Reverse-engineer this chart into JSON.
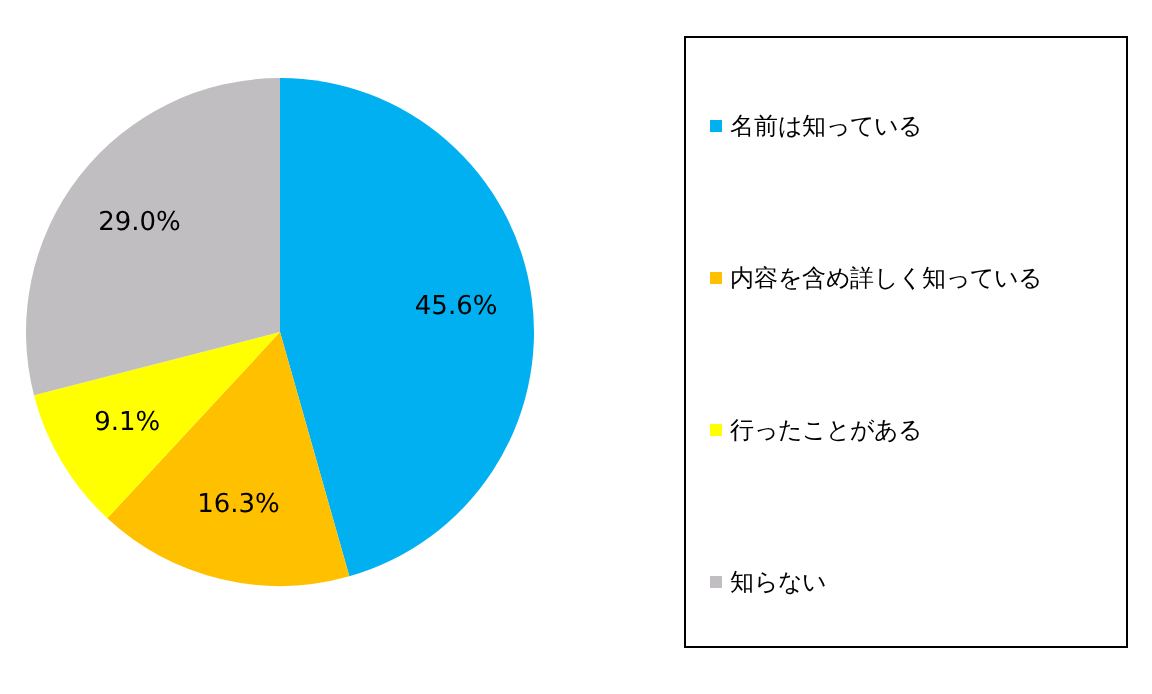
{
  "chart_data": {
    "type": "pie",
    "categories": [
      "名前は知っている",
      "内容を含め詳しく知っている",
      "行ったことがある",
      "知らない"
    ],
    "values": [
      45.6,
      16.3,
      9.1,
      29.0
    ],
    "colors": [
      "#00b0f0",
      "#ffc000",
      "#ffff00",
      "#c0bec0"
    ],
    "value_labels": [
      "45.6%",
      "16.3%",
      "9.1%",
      "29.0%"
    ],
    "legend": "right"
  }
}
